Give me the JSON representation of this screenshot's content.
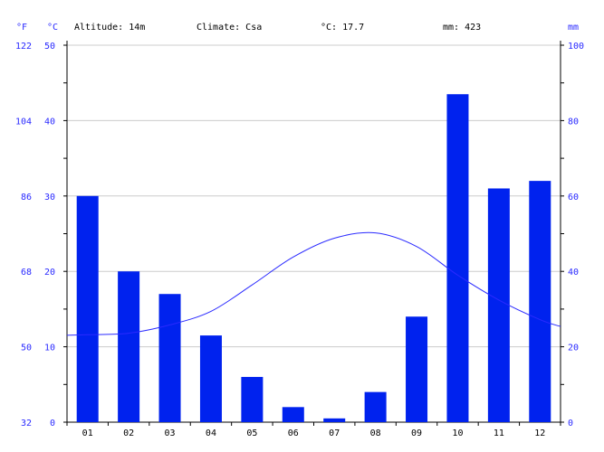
{
  "header": {
    "unit_f": "°F",
    "unit_c": "°C",
    "altitude": "Altitude: 14m",
    "climate": "Climate: Csa",
    "avg_temp": "°C: 17.7",
    "total_precip": "mm: 423",
    "unit_mm": "mm"
  },
  "colors": {
    "bars": "#0022ee",
    "line": "#2a2aff",
    "axis_text": "#2a2aff",
    "grid": "#cccccc"
  },
  "chart_data": {
    "type": "bar",
    "categories": [
      "01",
      "02",
      "03",
      "04",
      "05",
      "06",
      "07",
      "08",
      "09",
      "10",
      "11",
      "12"
    ],
    "series": [
      {
        "type": "bar",
        "axis": "right",
        "values": [
          60,
          40,
          34,
          23,
          12,
          4,
          1,
          8,
          28,
          87,
          62,
          64
        ]
      },
      {
        "type": "line",
        "axis": "left",
        "values": [
          11.6,
          11.8,
          12.9,
          14.7,
          18.2,
          21.9,
          24.4,
          25.1,
          23.3,
          19.5,
          16.2,
          13.6
        ]
      }
    ],
    "left_axis": {
      "unit": "°C",
      "ylim": [
        0,
        50
      ],
      "ticks": [
        "0",
        "10",
        "20",
        "30",
        "40",
        "50"
      ]
    },
    "far_left_axis": {
      "unit": "°F",
      "ticks": [
        "32",
        "50",
        "68",
        "86",
        "104",
        "122"
      ]
    },
    "right_axis": {
      "unit": "mm",
      "ylim": [
        0,
        100
      ],
      "ticks": [
        "0",
        "20",
        "40",
        "60",
        "80",
        "100"
      ]
    },
    "grid": true
  }
}
